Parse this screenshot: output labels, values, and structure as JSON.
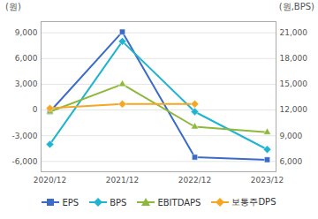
{
  "chart_data": {
    "type": "line",
    "ylabel": "(원)",
    "y2label": "(원,BPS)",
    "categories": [
      "2020/12",
      "2021/12",
      "2022/12",
      "2023/12"
    ],
    "ylim": [
      -7200,
      10300
    ],
    "yticks": [
      {
        "value": -6000,
        "label": "-6,000"
      },
      {
        "value": -3000,
        "label": "-3,000"
      },
      0,
      {
        "value": 3000,
        "label": "3,000"
      },
      {
        "value": 6000,
        "label": "6,000"
      },
      {
        "value": 9000,
        "label": "9,000"
      }
    ],
    "y2lim": [
      4800,
      22300
    ],
    "y2ticks": [
      {
        "value": 6000,
        "label": "6,000"
      },
      {
        "value": 9000,
        "label": "9,000"
      },
      {
        "value": 12000,
        "label": "12,000"
      },
      {
        "value": 15000,
        "label": "15,000"
      },
      {
        "value": 18000,
        "label": "18,000"
      },
      {
        "value": 21000,
        "label": "21,000"
      }
    ],
    "grid": true,
    "legend": "bottom",
    "series": [
      {
        "name": "EPS",
        "color": "#3a6bc9",
        "marker": "square",
        "values": [
          -200,
          9100,
          -5500,
          -5800
        ]
      },
      {
        "name": "BPS",
        "color": "#1fb5d0",
        "marker": "diamond",
        "axis": "y2",
        "values": [
          8000,
          20000,
          11800,
          7400
        ]
      },
      {
        "name": "EBITDAPS",
        "color": "#8cb83c",
        "marker": "triangle",
        "values": [
          -200,
          3000,
          -1950,
          -2600
        ]
      },
      {
        "name": "보통주DPS",
        "color": "#f5a623",
        "marker": "diamond",
        "values": [
          200,
          700,
          700,
          null
        ]
      }
    ]
  }
}
